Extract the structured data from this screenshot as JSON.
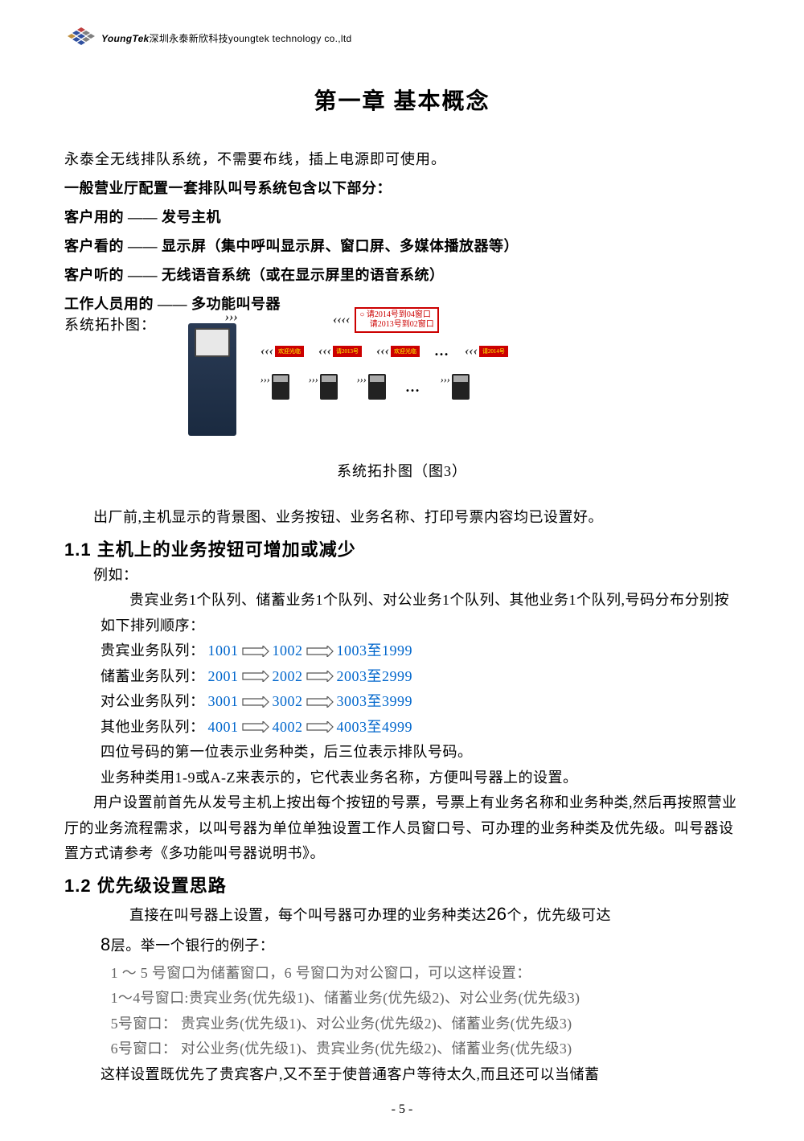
{
  "header": {
    "brand_italic": "YoungTek",
    "brand_text": "深圳永泰新欣科技youngtek technology co.,ltd"
  },
  "chapter_title": "第一章 基本概念",
  "intro": "永泰全无线排队系统，不需要布线，插上电源即可使用。",
  "config_lines": [
    "一般营业厅配置一套排队叫号系统包含以下部分：",
    "客户用的 —— 发号主机",
    "客户看的 —— 显示屏（集中呼叫显示屏、窗口屏、多媒体播放器等）",
    "客户听的 —— 无线语音系统（或在显示屏里的语音系统）",
    "工作人员用的 —— 多功能叫号器"
  ],
  "topo_label": "系统拓扑图：",
  "big_display": {
    "line1": "○ 请2014号到04窗口",
    "line2": "　 请2013号到02窗口"
  },
  "small_displays": [
    "欢迎光临",
    "请2013号",
    "欢迎光临",
    "请2014号"
  ],
  "figure_caption": "系统拓扑图（图3）",
  "factory_note": "出厂前,主机显示的背景图、业务按钮、业务名称、打印号票内容均已设置好。",
  "section_1_1": "1.1 主机上的业务按钮可增加或减少",
  "example_label": "例如：",
  "example_intro": "贵宾业务1个队列、储蓄业务1个队列、对公业务1个队列、其他业务1个队列,号码分布分别按如下排列顺序：",
  "queues": [
    {
      "label": "贵宾业务队列：",
      "a": "1001",
      "b": "1002",
      "c": "1003至1999"
    },
    {
      "label": "储蓄业务队列：",
      "a": "2001",
      "b": "2002",
      "c": "2003至2999"
    },
    {
      "label": "对公业务队列：",
      "a": "3001",
      "b": "3002",
      "c": "3003至3999"
    },
    {
      "label": "其他业务队列：",
      "a": "4001",
      "b": "4002",
      "c": "4003至4999"
    }
  ],
  "digit_note": "四位号码的第一位表示业务种类，后三位表示排队号码。",
  "type_note": "业务种类用1-9或A-Z来表示的，它代表业务名称，方便叫号器上的设置。",
  "user_setup": "用户设置前首先从发号主机上按出每个按钮的号票，号票上有业务名称和业务种类,然后再按照营业厅的业务流程需求，以叫号器为单位单独设置工作人员窗口号、可办理的业务种类及优先级。叫号器设置方式请参考《多功能叫号器说明书》。",
  "section_1_2": "1.2 优先级设置思路",
  "priority_intro_1": "直接在叫号器上设置，每个叫号器可办理的业务种类达",
  "priority_26": "26",
  "priority_intro_2": "个，优先级可达",
  "priority_8": "8",
  "priority_intro_3": "层。举一个银行的例子：",
  "priority_example": [
    "1 ～ 5 号窗口为储蓄窗口，6 号窗口为对公窗口，可以这样设置：",
    "1～4号窗口:贵宾业务(优先级1)、储蓄业务(优先级2)、对公业务(优先级3)",
    "5号窗口：  贵宾业务(优先级1)、对公业务(优先级2)、储蓄业务(优先级3)",
    "6号窗口：  对公业务(优先级1)、贵宾业务(优先级2)、储蓄业务(优先级3)"
  ],
  "priority_conclusion": "这样设置既优先了贵宾客户,又不至于使普通客户等待太久,而且还可以当储蓄",
  "page_number": "- 5 -",
  "colors": {
    "link_blue": "#0066cc",
    "red": "#c00000",
    "gray": "#666666"
  }
}
